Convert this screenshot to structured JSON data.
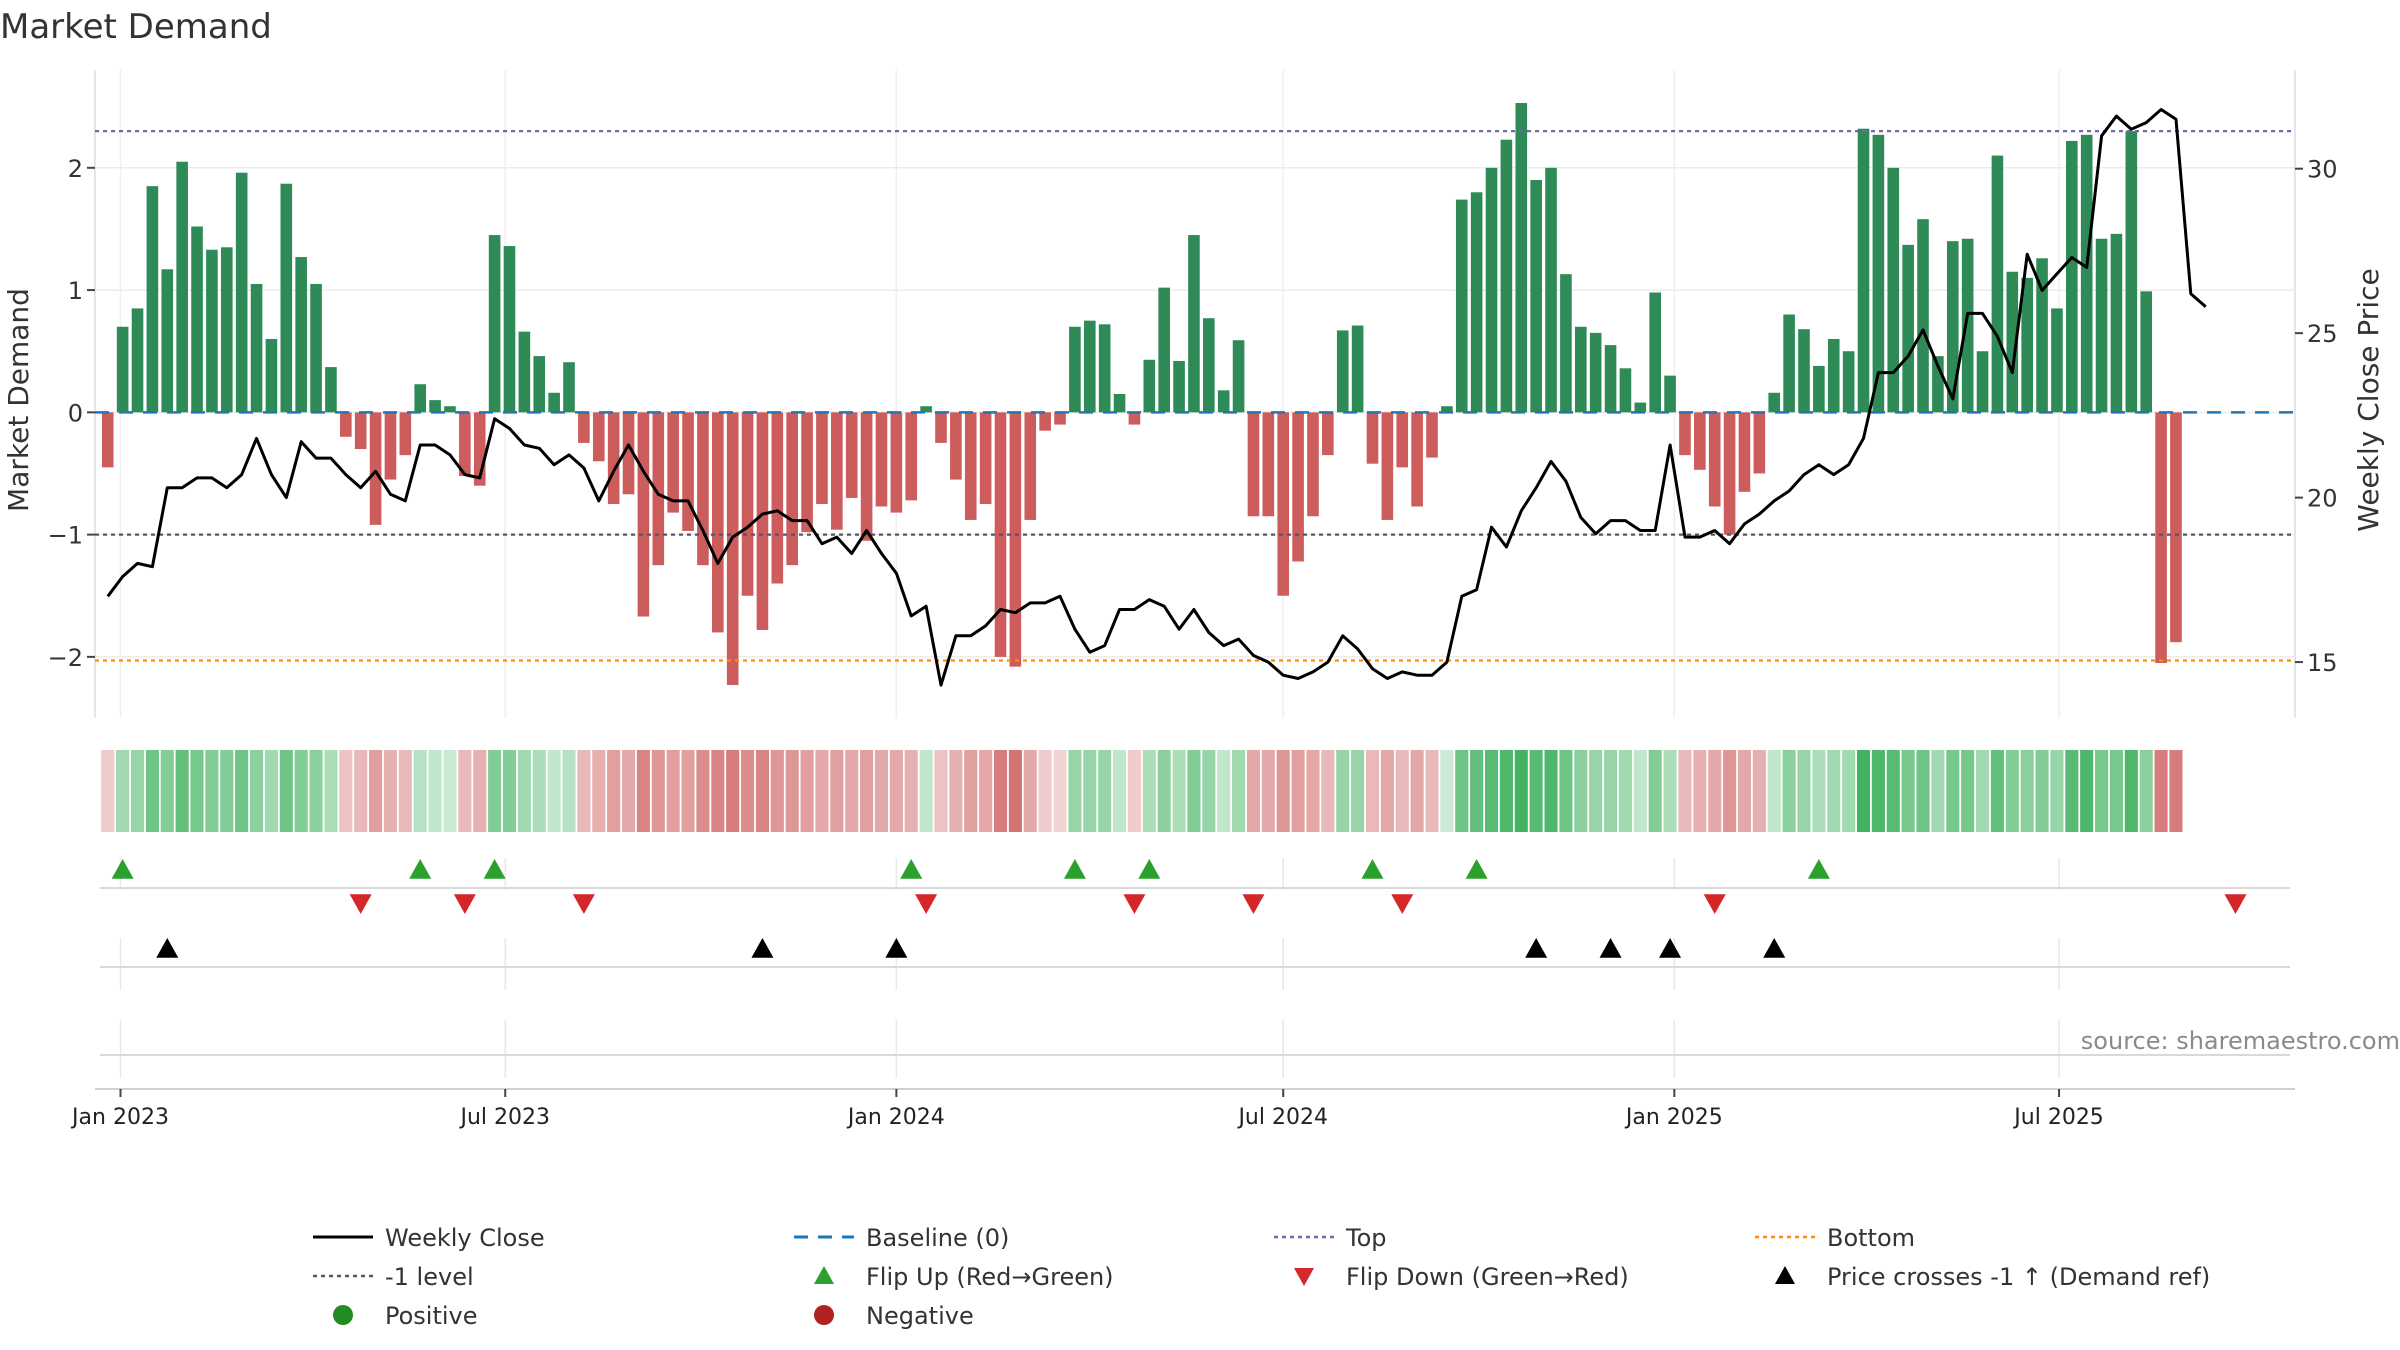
{
  "chart_data": {
    "type": "bar",
    "title": "Market Demand",
    "ylabel": "Market Demand",
    "y2label": "Weekly Close Price",
    "xlabel": "",
    "source": "source: sharemaestro.com",
    "x_start": "2022-12-26",
    "x_step_days": 7,
    "x_tick_labels": [
      {
        "label": "Jan 2023",
        "date": "2023-01-01"
      },
      {
        "label": "Jul 2023",
        "date": "2023-07-01"
      },
      {
        "label": "Jan 2024",
        "date": "2024-01-01"
      },
      {
        "label": "Jul 2024",
        "date": "2024-07-01"
      },
      {
        "label": "Jan 2025",
        "date": "2025-01-01"
      },
      {
        "label": "Jul 2025",
        "date": "2025-07-01"
      }
    ],
    "x_range": [
      "2022-12-20",
      "2025-10-20"
    ],
    "ylim": [
      -2.5,
      2.8
    ],
    "y_ticks": [
      {
        "label": "2",
        "value": 2
      },
      {
        "label": "1",
        "value": 1
      },
      {
        "label": "0",
        "value": 0
      },
      {
        "label": "−1",
        "value": -1
      },
      {
        "label": "−2",
        "value": -2
      }
    ],
    "y2lim": [
      13.3,
      33.0
    ],
    "y2_ticks": [
      {
        "label": "15",
        "value": 15
      },
      {
        "label": "20",
        "value": 20
      },
      {
        "label": "25",
        "value": 25
      },
      {
        "label": "30",
        "value": 30
      }
    ],
    "levels": {
      "top": 2.3,
      "minus_one": -1.0,
      "bottom": -2.03,
      "baseline": 0
    },
    "colors": {
      "positive": "#2e8b57",
      "negative": "#cd5c5c",
      "close": "#000000",
      "baseline": "#1f77b4",
      "top": "#6a6aaa",
      "minus_one": "#555566",
      "bottom": "#ff8c00",
      "flip_up": "#2ca02c",
      "flip_down": "#d62728",
      "cross": "#000000",
      "positive_dot": "#228b22",
      "negative_dot": "#b22222"
    },
    "demand": [
      -0.45,
      0.7,
      0.85,
      1.85,
      1.17,
      2.05,
      1.52,
      1.33,
      1.35,
      1.96,
      1.05,
      0.6,
      1.87,
      1.27,
      1.05,
      0.37,
      -0.2,
      -0.3,
      -0.92,
      -0.55,
      -0.35,
      0.23,
      0.1,
      0.05,
      -0.52,
      -0.6,
      1.45,
      1.36,
      0.66,
      0.46,
      0.16,
      0.41,
      -0.25,
      -0.4,
      -0.75,
      -0.67,
      -1.67,
      -1.25,
      -0.82,
      -0.97,
      -1.25,
      -1.8,
      -2.23,
      -1.5,
      -1.78,
      -1.4,
      -1.25,
      -0.98,
      -0.75,
      -0.96,
      -0.7,
      -1.05,
      -0.77,
      -0.82,
      -0.72,
      0.05,
      -0.25,
      -0.55,
      -0.88,
      -0.75,
      -2.0,
      -2.08,
      -0.88,
      -0.15,
      -0.1,
      0.7,
      0.75,
      0.72,
      0.15,
      -0.1,
      0.43,
      1.02,
      0.42,
      1.45,
      0.77,
      0.18,
      0.59,
      -0.85,
      -0.85,
      -1.5,
      -1.22,
      -0.85,
      -0.35,
      0.67,
      0.71,
      -0.42,
      -0.88,
      -0.45,
      -0.77,
      -0.37,
      0.05,
      1.74,
      1.8,
      2.0,
      2.23,
      2.53,
      1.9,
      2.0,
      1.13,
      0.7,
      0.65,
      0.55,
      0.36,
      0.08,
      0.98,
      0.3,
      -0.35,
      -0.47,
      -0.77,
      -1.0,
      -0.65,
      -0.5,
      0.16,
      0.8,
      0.68,
      0.38,
      0.6,
      0.5,
      2.32,
      2.27,
      2.0,
      1.37,
      1.58,
      0.46,
      1.4,
      1.42,
      0.5,
      2.1,
      1.15,
      1.1,
      1.26,
      0.85,
      2.22,
      2.27,
      1.42,
      1.46,
      2.3,
      0.99,
      -2.05,
      -1.88
    ],
    "close": [
      17.0,
      17.6,
      18.0,
      17.9,
      20.3,
      20.3,
      20.6,
      20.6,
      20.3,
      20.7,
      21.8,
      20.7,
      20.0,
      21.7,
      21.2,
      21.2,
      20.7,
      20.3,
      20.8,
      20.1,
      19.9,
      21.6,
      21.6,
      21.3,
      20.7,
      20.6,
      22.4,
      22.1,
      21.6,
      21.5,
      21.0,
      21.3,
      20.9,
      19.9,
      20.8,
      21.6,
      20.8,
      20.1,
      19.9,
      19.9,
      19.0,
      18.0,
      18.8,
      19.1,
      19.5,
      19.6,
      19.3,
      19.3,
      18.6,
      18.8,
      18.3,
      19.0,
      18.3,
      17.7,
      16.4,
      16.7,
      14.3,
      15.8,
      15.8,
      16.1,
      16.6,
      16.5,
      16.8,
      16.8,
      17.0,
      16.0,
      15.3,
      15.5,
      16.6,
      16.6,
      16.9,
      16.7,
      16.0,
      16.6,
      15.9,
      15.5,
      15.7,
      15.2,
      15.0,
      14.6,
      14.5,
      14.7,
      15.0,
      15.8,
      15.4,
      14.8,
      14.5,
      14.7,
      14.6,
      14.6,
      15.0,
      17.0,
      17.2,
      19.1,
      18.5,
      19.6,
      20.3,
      21.1,
      20.5,
      19.4,
      18.9,
      19.3,
      19.3,
      19.0,
      19.0,
      21.6,
      18.8,
      18.8,
      19.0,
      18.6,
      19.2,
      19.5,
      19.9,
      20.2,
      20.7,
      21.0,
      20.7,
      21.0,
      21.8,
      23.8,
      23.8,
      24.3,
      25.1,
      24.0,
      23.0,
      25.6,
      25.6,
      24.9,
      23.8,
      27.4,
      26.3,
      26.8,
      27.3,
      27.0,
      31.0,
      31.6,
      31.2,
      31.4,
      31.8,
      31.5,
      26.2,
      25.8
    ],
    "strip_intensity": [
      0.3,
      0.45,
      0.5,
      0.7,
      0.6,
      0.75,
      0.65,
      0.6,
      0.6,
      0.7,
      0.55,
      0.45,
      0.7,
      0.6,
      0.55,
      0.4,
      0.35,
      0.4,
      0.55,
      0.45,
      0.4,
      0.35,
      0.3,
      0.25,
      0.4,
      0.45,
      0.6,
      0.6,
      0.45,
      0.4,
      0.3,
      0.35,
      0.4,
      0.45,
      0.55,
      0.5,
      0.7,
      0.6,
      0.55,
      0.55,
      0.65,
      0.7,
      0.75,
      0.65,
      0.7,
      0.6,
      0.6,
      0.55,
      0.5,
      0.55,
      0.5,
      0.55,
      0.5,
      0.5,
      0.45,
      0.3,
      0.35,
      0.45,
      0.55,
      0.5,
      0.75,
      0.8,
      0.5,
      0.3,
      0.25,
      0.5,
      0.5,
      0.5,
      0.3,
      0.3,
      0.4,
      0.55,
      0.4,
      0.6,
      0.5,
      0.3,
      0.45,
      0.5,
      0.5,
      0.6,
      0.55,
      0.5,
      0.4,
      0.5,
      0.5,
      0.4,
      0.5,
      0.4,
      0.5,
      0.4,
      0.25,
      0.7,
      0.75,
      0.8,
      0.85,
      0.9,
      0.8,
      0.85,
      0.7,
      0.55,
      0.5,
      0.5,
      0.45,
      0.3,
      0.6,
      0.4,
      0.4,
      0.45,
      0.5,
      0.6,
      0.5,
      0.45,
      0.3,
      0.55,
      0.5,
      0.4,
      0.45,
      0.45,
      0.9,
      0.85,
      0.8,
      0.65,
      0.7,
      0.45,
      0.65,
      0.65,
      0.45,
      0.75,
      0.6,
      0.55,
      0.6,
      0.5,
      0.8,
      0.85,
      0.65,
      0.65,
      0.85,
      0.55,
      0.75,
      0.75
    ],
    "flip_up_idx": [
      1,
      21,
      26,
      54,
      65,
      70,
      85,
      92,
      115
    ],
    "flip_down_idx": [
      17,
      24,
      32,
      55,
      69,
      77,
      87,
      108,
      143
    ],
    "cross_idx": [
      4,
      44,
      53,
      96,
      101,
      105,
      112
    ],
    "legend": [
      {
        "label": "Weekly Close",
        "key": "close"
      },
      {
        "label": "Baseline (0)",
        "key": "baseline"
      },
      {
        "label": "Top",
        "key": "top"
      },
      {
        "label": "Bottom",
        "key": "bottom"
      },
      {
        "label": "-1 level",
        "key": "minus_one"
      },
      {
        "label": "Flip Up (Red→Green)",
        "key": "flip_up"
      },
      {
        "label": "Flip Down (Green→Red)",
        "key": "flip_down"
      },
      {
        "label": "Price crosses -1 ↑ (Demand ref)",
        "key": "cross"
      },
      {
        "label": "Positive",
        "key": "positive_dot"
      },
      {
        "label": "Negative",
        "key": "negative_dot"
      }
    ]
  }
}
